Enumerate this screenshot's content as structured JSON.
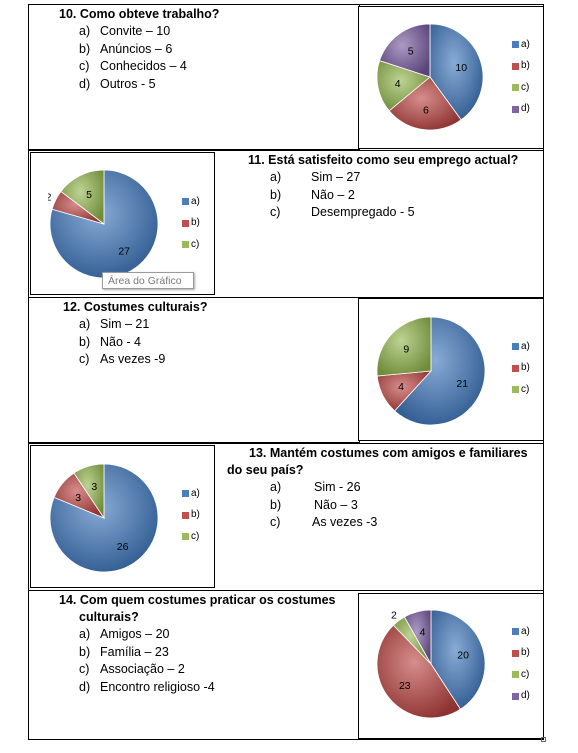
{
  "questions": [
    {
      "id": "q10",
      "title": "10.  Como obteve trabalho?",
      "options": [
        {
          "letter": "a)",
          "text": "Convite – 10"
        },
        {
          "letter": "b)",
          "text": "Anúncios  – 6"
        },
        {
          "letter": "c)",
          "text": "Conhecidos  – 4"
        },
        {
          "letter": "d)",
          "text": "Outros  - 5"
        }
      ]
    },
    {
      "id": "q11",
      "title": "11. Está satisfeito como seu emprego actual?",
      "options": [
        {
          "letter": "a)",
          "text": "Sim – 27"
        },
        {
          "letter": "b)",
          "text": "Não – 2"
        },
        {
          "letter": "c)",
          "text": "Desempregado  - 5"
        }
      ]
    },
    {
      "id": "q12",
      "title": "12. Costumes culturais?",
      "options": [
        {
          "letter": "a)",
          "text": "Sim – 21"
        },
        {
          "letter": "b)",
          "text": "Não  - 4"
        },
        {
          "letter": "c)",
          "text": "As vezes -9"
        }
      ]
    },
    {
      "id": "q13",
      "title_line1": "13. Mantém costumes com amigos e familiares",
      "title_line2": "do seu país?",
      "options": [
        {
          "letter": "a)",
          "text": "Sim  - 26"
        },
        {
          "letter": "b)",
          "text": "Não  – 3"
        },
        {
          "letter": "c)",
          "text": "As vezes -3"
        }
      ]
    },
    {
      "id": "q14",
      "title_line1": "14.  Com quem costumes praticar os costumes",
      "title_line2": "culturais?",
      "options": [
        {
          "letter": "a)",
          "text": "Amigos – 20"
        },
        {
          "letter": "b)",
          "text": "Família  – 23"
        },
        {
          "letter": "c)",
          "text": " Associação – 2"
        },
        {
          "letter": "d)",
          "text": "Encontro religioso -4"
        }
      ]
    }
  ],
  "tooltip": "Área do Gráfico",
  "colors": {
    "a": "#4a7ebf",
    "b": "#c0504d",
    "c": "#9bbb59",
    "d": "#8064a2"
  },
  "chart_data": [
    {
      "type": "pie",
      "categories": [
        "a)",
        "b)",
        "c)",
        "d)"
      ],
      "values": [
        10,
        6,
        4,
        5
      ]
    },
    {
      "type": "pie",
      "categories": [
        "a)",
        "b)",
        "c)"
      ],
      "values": [
        27,
        2,
        5
      ]
    },
    {
      "type": "pie",
      "categories": [
        "a)",
        "b)",
        "c)"
      ],
      "values": [
        21,
        4,
        9
      ]
    },
    {
      "type": "pie",
      "categories": [
        "a)",
        "b)",
        "c)"
      ],
      "values": [
        26,
        3,
        3
      ]
    },
    {
      "type": "pie",
      "categories": [
        "a)",
        "b)",
        "c)",
        "d)"
      ],
      "values": [
        20,
        23,
        2,
        4
      ]
    }
  ]
}
